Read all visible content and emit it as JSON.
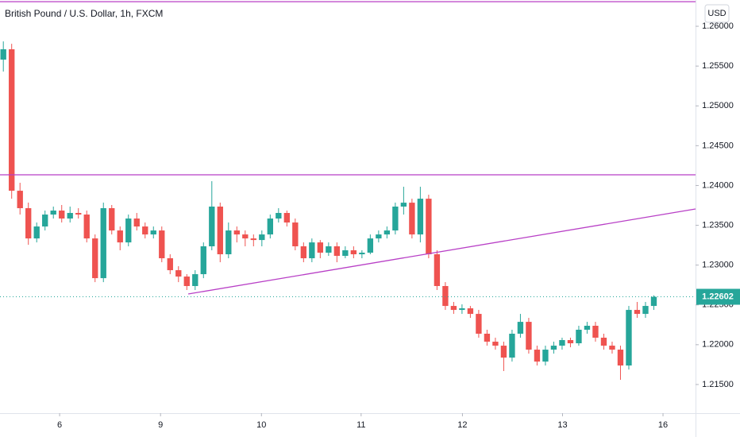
{
  "chart_data": {
    "type": "candlestick",
    "title": "British Pound / U.S. Dollar, 1h, FXCM",
    "currency": "USD",
    "up_color": "#26a69a",
    "down_color": "#ef5350",
    "line_color": "#b83fc6",
    "grid": false,
    "xlim": [
      -0.4,
      83
    ],
    "ylim": [
      1.2114,
      1.2633
    ],
    "yticks": [
      {
        "value": 1.215,
        "label": "1.21500"
      },
      {
        "value": 1.22,
        "label": "1.22000"
      },
      {
        "value": 1.225,
        "label": "1.22500"
      },
      {
        "value": 1.23,
        "label": "1.23000"
      },
      {
        "value": 1.235,
        "label": "1.23500"
      },
      {
        "value": 1.24,
        "label": "1.24000"
      },
      {
        "value": 1.245,
        "label": "1.24500"
      },
      {
        "value": 1.25,
        "label": "1.25000"
      },
      {
        "value": 1.255,
        "label": "1.25500"
      },
      {
        "value": 1.26,
        "label": "1.26000"
      }
    ],
    "xticks": [
      {
        "value": 6.75,
        "label": "6"
      },
      {
        "value": 18.85,
        "label": "9"
      },
      {
        "value": 30.95,
        "label": "10"
      },
      {
        "value": 42.9,
        "label": "11"
      },
      {
        "value": 55.05,
        "label": "12"
      },
      {
        "value": 67.05,
        "label": "13"
      },
      {
        "value": 79.1,
        "label": "16"
      }
    ],
    "price_line": {
      "value": 1.22602,
      "label": "1.22602"
    },
    "horizontal_lines": [
      1.26309,
      1.24134
    ],
    "trend_lines": [
      {
        "x": [
          22.17,
          83
        ],
        "y": [
          1.22637,
          1.23705
        ]
      }
    ],
    "ohlc": [
      [
        1.25581,
        1.2581,
        1.25431,
        1.25711
      ],
      [
        1.25711,
        1.2578,
        1.23834,
        1.23934
      ],
      [
        1.23934,
        1.24034,
        1.23635,
        1.23715
      ],
      [
        1.23715,
        1.23785,
        1.23255,
        1.23335
      ],
      [
        1.23335,
        1.23535,
        1.23285,
        1.23485
      ],
      [
        1.23485,
        1.23685,
        1.23435,
        1.23635
      ],
      [
        1.23635,
        1.23735,
        1.23585,
        1.23685
      ],
      [
        1.23685,
        1.23755,
        1.23535,
        1.23585
      ],
      [
        1.23585,
        1.23735,
        1.23535,
        1.23655
      ],
      [
        1.23655,
        1.23715,
        1.23585,
        1.23635
      ],
      [
        1.23635,
        1.23685,
        1.23285,
        1.23335
      ],
      [
        1.23335,
        1.23385,
        1.22786,
        1.22836
      ],
      [
        1.22836,
        1.23785,
        1.22786,
        1.23715
      ],
      [
        1.23715,
        1.23755,
        1.23385,
        1.23435
      ],
      [
        1.23435,
        1.23485,
        1.23186,
        1.23285
      ],
      [
        1.23285,
        1.23635,
        1.23236,
        1.23585
      ],
      [
        1.23585,
        1.23655,
        1.23435,
        1.23485
      ],
      [
        1.23485,
        1.23535,
        1.23335,
        1.23385
      ],
      [
        1.23385,
        1.23485,
        1.23335,
        1.23435
      ],
      [
        1.23435,
        1.23485,
        1.23036,
        1.23086
      ],
      [
        1.23086,
        1.23136,
        1.22886,
        1.22936
      ],
      [
        1.22936,
        1.22986,
        1.22786,
        1.22856
      ],
      [
        1.22856,
        1.22886,
        1.22687,
        1.22737
      ],
      [
        1.22737,
        1.22936,
        1.22687,
        1.22886
      ],
      [
        1.22886,
        1.23285,
        1.22836,
        1.23236
      ],
      [
        1.23236,
        1.24054,
        1.23186,
        1.23735
      ],
      [
        1.23735,
        1.23785,
        1.23036,
        1.23136
      ],
      [
        1.23136,
        1.23535,
        1.23086,
        1.23435
      ],
      [
        1.23435,
        1.23485,
        1.23285,
        1.23385
      ],
      [
        1.23385,
        1.23435,
        1.23236,
        1.23335
      ],
      [
        1.23335,
        1.23385,
        1.23236,
        1.23315
      ],
      [
        1.23315,
        1.23435,
        1.23236,
        1.23385
      ],
      [
        1.23385,
        1.23635,
        1.23335,
        1.23585
      ],
      [
        1.23585,
        1.23715,
        1.23535,
        1.23655
      ],
      [
        1.23655,
        1.23685,
        1.23485,
        1.23535
      ],
      [
        1.23535,
        1.23585,
        1.23186,
        1.23236
      ],
      [
        1.23236,
        1.23285,
        1.23036,
        1.23086
      ],
      [
        1.23086,
        1.23335,
        1.23036,
        1.23285
      ],
      [
        1.23285,
        1.23315,
        1.23086,
        1.23156
      ],
      [
        1.23156,
        1.23285,
        1.23116,
        1.23236
      ],
      [
        1.23236,
        1.23285,
        1.23036,
        1.23116
      ],
      [
        1.23116,
        1.23236,
        1.23086,
        1.23186
      ],
      [
        1.23186,
        1.23236,
        1.23086,
        1.23136
      ],
      [
        1.23136,
        1.23186,
        1.23086,
        1.23156
      ],
      [
        1.23156,
        1.23385,
        1.23136,
        1.23335
      ],
      [
        1.23335,
        1.23435,
        1.23285,
        1.23385
      ],
      [
        1.23385,
        1.23485,
        1.23335,
        1.23435
      ],
      [
        1.23435,
        1.23785,
        1.23385,
        1.23735
      ],
      [
        1.23735,
        1.23984,
        1.23635,
        1.23784
      ],
      [
        1.23784,
        1.23834,
        1.23335,
        1.23385
      ],
      [
        1.23385,
        1.23984,
        1.23285,
        1.23834
      ],
      [
        1.23834,
        1.23884,
        1.23086,
        1.23136
      ],
      [
        1.23136,
        1.23186,
        1.22687,
        1.22737
      ],
      [
        1.22737,
        1.22786,
        1.22437,
        1.22487
      ],
      [
        1.22487,
        1.22537,
        1.22387,
        1.22437
      ],
      [
        1.22437,
        1.22507,
        1.22387,
        1.22457
      ],
      [
        1.22457,
        1.22487,
        1.22337,
        1.22387
      ],
      [
        1.22387,
        1.22437,
        1.22088,
        1.22138
      ],
      [
        1.22138,
        1.22188,
        1.21988,
        1.22038
      ],
      [
        1.22038,
        1.22088,
        1.21938,
        1.21988
      ],
      [
        1.21988,
        1.22038,
        1.21669,
        1.21838
      ],
      [
        1.21838,
        1.22188,
        1.21788,
        1.22138
      ],
      [
        1.22138,
        1.22387,
        1.22088,
        1.22287
      ],
      [
        1.22287,
        1.22337,
        1.21888,
        1.21938
      ],
      [
        1.21938,
        1.21988,
        1.21739,
        1.21788
      ],
      [
        1.21788,
        1.21988,
        1.21739,
        1.21938
      ],
      [
        1.21938,
        1.22038,
        1.21888,
        1.21988
      ],
      [
        1.21988,
        1.22088,
        1.21938,
        1.22058
      ],
      [
        1.22058,
        1.22088,
        1.21968,
        1.22018
      ],
      [
        1.22018,
        1.22238,
        1.21988,
        1.22188
      ],
      [
        1.22188,
        1.22287,
        1.22138,
        1.22238
      ],
      [
        1.22238,
        1.22287,
        1.22038,
        1.22088
      ],
      [
        1.22088,
        1.22138,
        1.21938,
        1.21988
      ],
      [
        1.21988,
        1.22038,
        1.21888,
        1.21938
      ],
      [
        1.21938,
        1.21988,
        1.21559,
        1.21739
      ],
      [
        1.21739,
        1.22487,
        1.21688,
        1.22437
      ],
      [
        1.22437,
        1.22537,
        1.22337,
        1.22387
      ],
      [
        1.22387,
        1.22537,
        1.22337,
        1.22487
      ],
      [
        1.22487,
        1.2262,
        1.22437,
        1.22602
      ]
    ]
  }
}
